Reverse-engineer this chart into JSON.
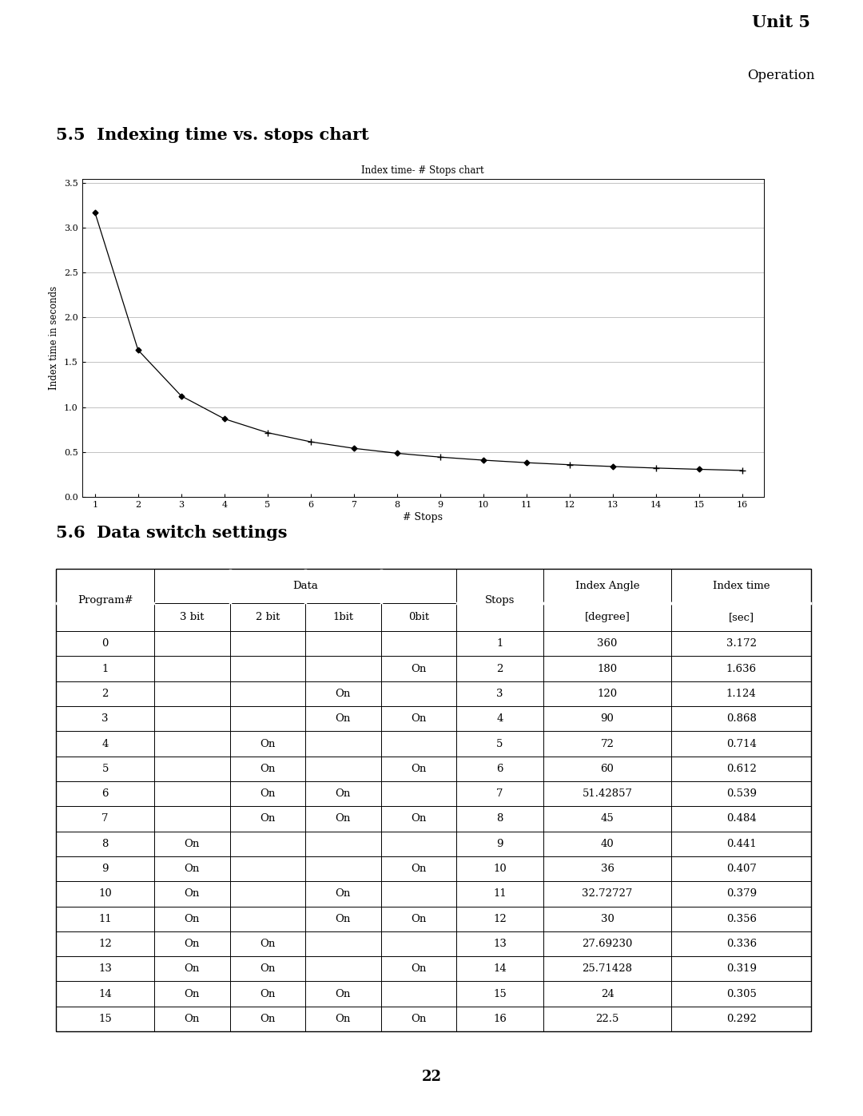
{
  "title_unit": "Unit 5",
  "title_operation": "Operation",
  "section_55_title": "5.5  Indexing time vs. stops chart",
  "section_56_title": "5.6  Data switch settings",
  "chart_title": "Index time- # Stops chart",
  "chart_xlabel": "# Stops",
  "chart_ylabel": "Index time in seconds",
  "x_data": [
    1,
    2,
    3,
    4,
    5,
    6,
    7,
    8,
    9,
    10,
    11,
    12,
    13,
    14,
    15,
    16
  ],
  "y_data": [
    3.172,
    1.636,
    1.124,
    0.868,
    0.714,
    0.612,
    0.539,
    0.484,
    0.441,
    0.407,
    0.379,
    0.356,
    0.336,
    0.319,
    0.305,
    0.292
  ],
  "xlim": [
    1,
    16
  ],
  "ylim": [
    0.0,
    3.5
  ],
  "yticks": [
    0.0,
    0.5,
    1.0,
    1.5,
    2.0,
    2.5,
    3.0,
    3.5
  ],
  "xticks": [
    1,
    2,
    3,
    4,
    5,
    6,
    7,
    8,
    9,
    10,
    11,
    12,
    13,
    14,
    15,
    16
  ],
  "page_number": "22",
  "diamond_pts": [
    1,
    2,
    3,
    4,
    7,
    8,
    10,
    11,
    13,
    15
  ],
  "cross_pts": [
    5,
    6,
    9,
    12,
    14,
    16
  ],
  "table_data": [
    [
      0,
      "",
      "",
      "",
      "",
      1,
      "360",
      "3.172"
    ],
    [
      1,
      "",
      "",
      "",
      "On",
      2,
      "180",
      "1.636"
    ],
    [
      2,
      "",
      "",
      "On",
      "",
      3,
      "120",
      "1.124"
    ],
    [
      3,
      "",
      "",
      "On",
      "On",
      4,
      "90",
      "0.868"
    ],
    [
      4,
      "",
      "On",
      "",
      "",
      5,
      "72",
      "0.714"
    ],
    [
      5,
      "",
      "On",
      "",
      "On",
      6,
      "60",
      "0.612"
    ],
    [
      6,
      "",
      "On",
      "On",
      "",
      7,
      "51.42857",
      "0.539"
    ],
    [
      7,
      "",
      "On",
      "On",
      "On",
      8,
      "45",
      "0.484"
    ],
    [
      8,
      "On",
      "",
      "",
      "",
      9,
      "40",
      "0.441"
    ],
    [
      9,
      "On",
      "",
      "",
      "On",
      10,
      "36",
      "0.407"
    ],
    [
      10,
      "On",
      "",
      "On",
      "",
      11,
      "32.72727",
      "0.379"
    ],
    [
      11,
      "On",
      "",
      "On",
      "On",
      12,
      "30",
      "0.356"
    ],
    [
      12,
      "On",
      "On",
      "",
      "",
      13,
      "27.69230",
      "0.336"
    ],
    [
      13,
      "On",
      "On",
      "",
      "On",
      14,
      "25.71428",
      "0.319"
    ],
    [
      14,
      "On",
      "On",
      "On",
      "",
      15,
      "24",
      "0.305"
    ],
    [
      15,
      "On",
      "On",
      "On",
      "On",
      16,
      "22.5",
      "0.292"
    ]
  ]
}
